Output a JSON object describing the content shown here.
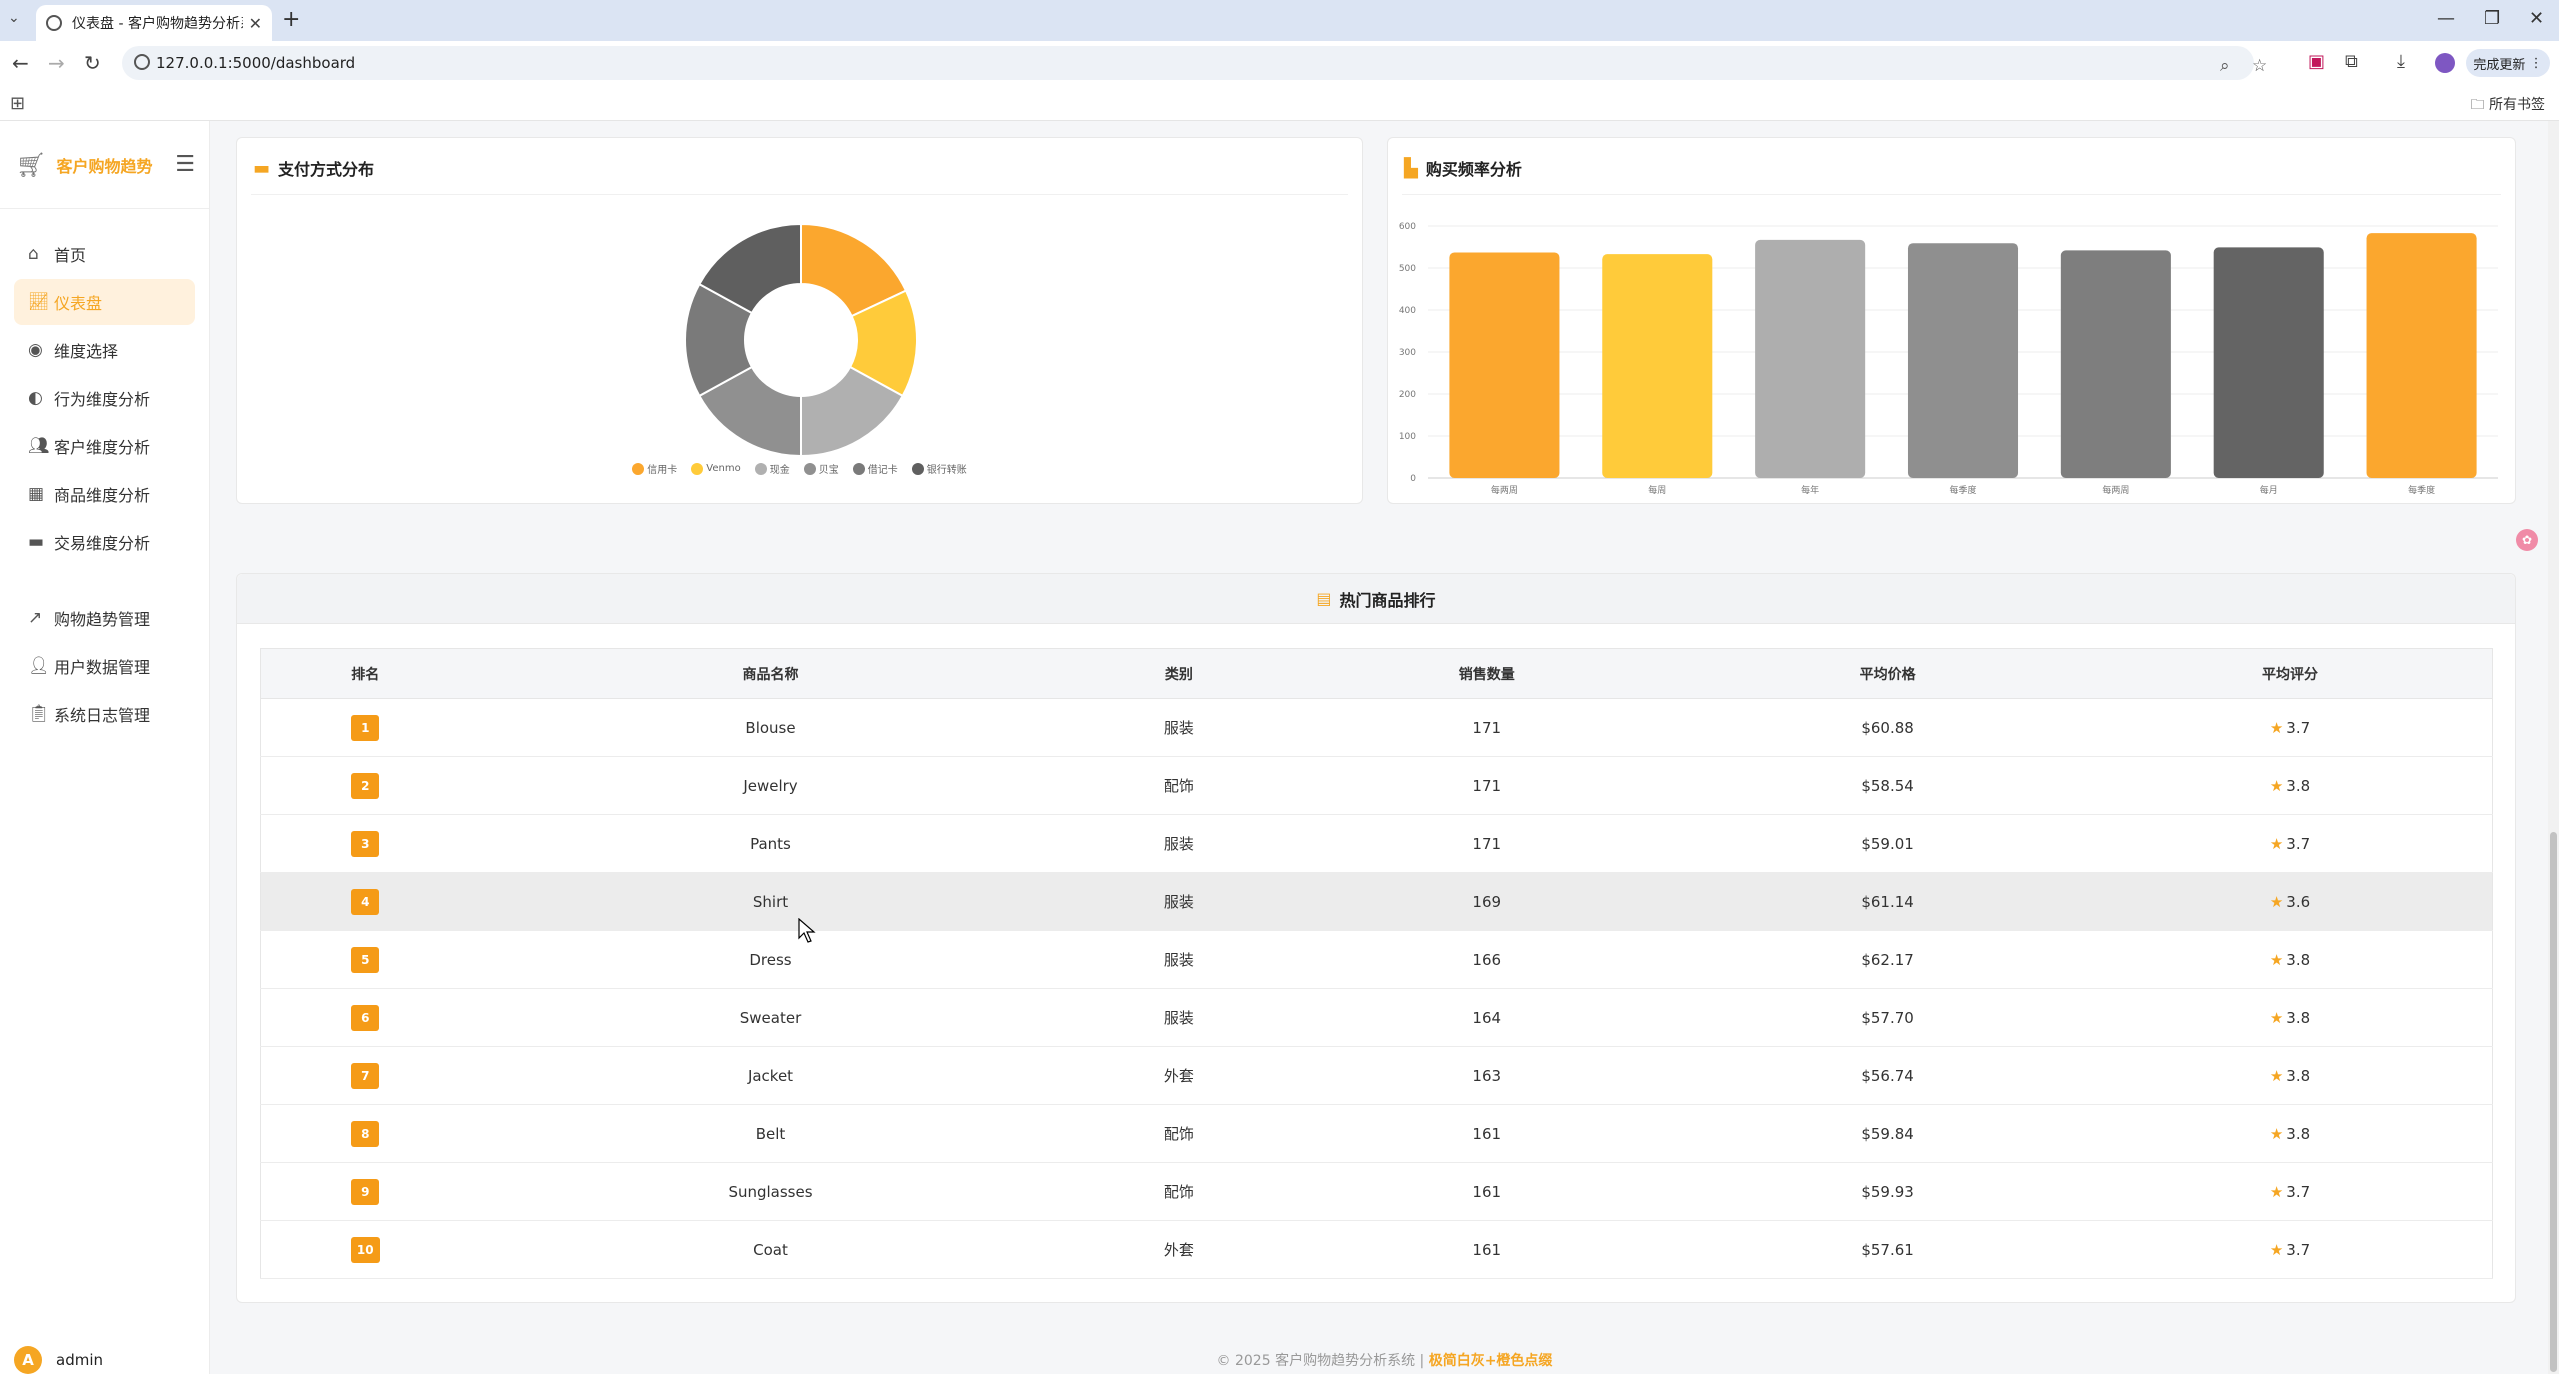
{
  "browser": {
    "tab_title": "仪表盘 - 客户购物趋势分析系统",
    "url": "127.0.0.1:5000/dashboard",
    "update_label": "完成更新",
    "bookmarks_label": "所有书签"
  },
  "sidebar": {
    "brand": "客户购物趋势",
    "items": [
      {
        "label": "首页",
        "icon": "home-icon"
      },
      {
        "label": "仪表盘",
        "icon": "chart-line-icon",
        "active": true
      },
      {
        "label": "维度选择",
        "icon": "compass-icon"
      },
      {
        "label": "行为维度分析",
        "icon": "brain-icon"
      },
      {
        "label": "客户维度分析",
        "icon": "users-icon"
      },
      {
        "label": "商品维度分析",
        "icon": "box-icon"
      },
      {
        "label": "交易维度分析",
        "icon": "credit-card-icon"
      },
      {
        "label": "购物趋势管理",
        "icon": "trend-icon"
      },
      {
        "label": "用户数据管理",
        "icon": "user-cog-icon"
      },
      {
        "label": "系统日志管理",
        "icon": "clipboard-icon"
      }
    ],
    "user": {
      "initial": "A",
      "name": "admin"
    }
  },
  "payment_card": {
    "title": "支付方式分布"
  },
  "frequency_card": {
    "title": "购买频率分析"
  },
  "chart_data": [
    {
      "type": "pie",
      "donut": true,
      "title": "支付方式分布",
      "categories": [
        "信用卡",
        "Venmo",
        "现金",
        "贝宝",
        "借记卡",
        "银行转账"
      ],
      "values": [
        18,
        15,
        17,
        17,
        16,
        17
      ],
      "colors": [
        "#FBA72E",
        "#FFCB3A",
        "#B0B0B0",
        "#909090",
        "#7A7A7A",
        "#5F5F5F"
      ],
      "legend": "bottom"
    },
    {
      "type": "bar",
      "title": "购买频率分析",
      "categories": [
        "每两周",
        "每周",
        "每年",
        "每季度",
        "每两周",
        "每月",
        "每季度"
      ],
      "values": [
        537,
        533,
        567,
        559,
        542,
        549,
        583
      ],
      "colors": [
        "#FBA72E",
        "#FFCB3A",
        "#AEAEAE",
        "#8F8F8F",
        "#7E7E7E",
        "#646464",
        "#FBA72E"
      ],
      "ylim": [
        0,
        600
      ],
      "yticks": [
        0,
        100,
        200,
        300,
        400,
        500,
        600
      ],
      "grid": true
    }
  ],
  "table": {
    "title": "热门商品排行",
    "headers": [
      "排名",
      "商品名称",
      "类别",
      "销售数量",
      "平均价格",
      "平均评分"
    ],
    "rows": [
      {
        "rank": "1",
        "name": "Blouse",
        "category": "服装",
        "qty": "171",
        "price": "$60.88",
        "rating": "3.7"
      },
      {
        "rank": "2",
        "name": "Jewelry",
        "category": "配饰",
        "qty": "171",
        "price": "$58.54",
        "rating": "3.8"
      },
      {
        "rank": "3",
        "name": "Pants",
        "category": "服装",
        "qty": "171",
        "price": "$59.01",
        "rating": "3.7"
      },
      {
        "rank": "4",
        "name": "Shirt",
        "category": "服装",
        "qty": "169",
        "price": "$61.14",
        "rating": "3.6"
      },
      {
        "rank": "5",
        "name": "Dress",
        "category": "服装",
        "qty": "166",
        "price": "$62.17",
        "rating": "3.8"
      },
      {
        "rank": "6",
        "name": "Sweater",
        "category": "服装",
        "qty": "164",
        "price": "$57.70",
        "rating": "3.8"
      },
      {
        "rank": "7",
        "name": "Jacket",
        "category": "外套",
        "qty": "163",
        "price": "$56.74",
        "rating": "3.8"
      },
      {
        "rank": "8",
        "name": "Belt",
        "category": "配饰",
        "qty": "161",
        "price": "$59.84",
        "rating": "3.8"
      },
      {
        "rank": "9",
        "name": "Sunglasses",
        "category": "配饰",
        "qty": "161",
        "price": "$59.93",
        "rating": "3.7"
      },
      {
        "rank": "10",
        "name": "Coat",
        "category": "外套",
        "qty": "161",
        "price": "$57.61",
        "rating": "3.7"
      }
    ]
  },
  "footer": {
    "text": "© 2025 客户购物趋势分析系统 | ",
    "highlight": "极简白灰+橙色点缀"
  }
}
